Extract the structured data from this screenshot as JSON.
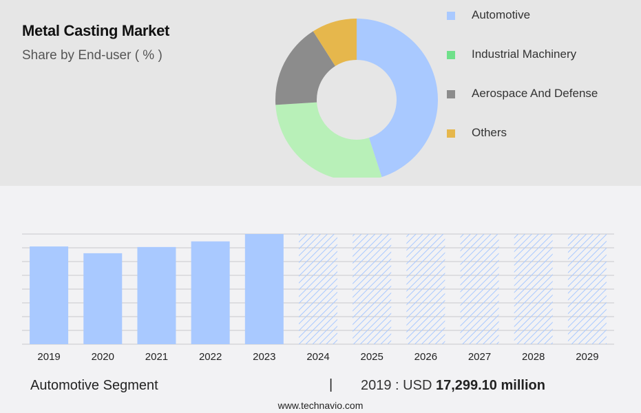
{
  "header": {
    "title": "Metal Casting Market",
    "subtitle": "Share by End-user ( % )"
  },
  "donut_chart": {
    "type": "pie",
    "segments": [
      {
        "name": "Automotive",
        "value": 45,
        "color": "#a9c9ff"
      },
      {
        "name": "Industrial Machinery",
        "value": 29,
        "color": "#b8f0b8"
      },
      {
        "name": "Aerospace And Defense",
        "value": 17,
        "color": "#8c8c8c"
      },
      {
        "name": "Others",
        "value": 9,
        "color": "#e6b74c"
      }
    ]
  },
  "legend": {
    "items": [
      {
        "label": "Automotive",
        "color": "#a9c9ff"
      },
      {
        "label": "Industrial Machinery",
        "color": "#6fe08a"
      },
      {
        "label": "Aerospace And Defense",
        "color": "#8c8c8c"
      },
      {
        "label": "Others",
        "color": "#e6b74c"
      }
    ]
  },
  "chart_data": {
    "type": "bar",
    "categories": [
      "2019",
      "2020",
      "2021",
      "2022",
      "2023",
      "2024",
      "2025",
      "2026",
      "2027",
      "2028",
      "2029"
    ],
    "values": [
      17299.1,
      16100,
      17200,
      18200,
      19500,
      19500,
      19500,
      19500,
      19500,
      19500,
      19500
    ],
    "forecast": [
      false,
      false,
      false,
      false,
      false,
      true,
      true,
      true,
      true,
      true,
      true
    ],
    "ylim": [
      0,
      19500
    ],
    "grid": true,
    "bar_color": "#a9c9ff",
    "title": "",
    "xlabel": "",
    "ylabel": ""
  },
  "footer": {
    "segment_label": "Automotive Segment",
    "divider": "|",
    "value_prefix": "2019 : USD",
    "value_amount": "17,299.10 million",
    "url": "www.technavio.com"
  }
}
